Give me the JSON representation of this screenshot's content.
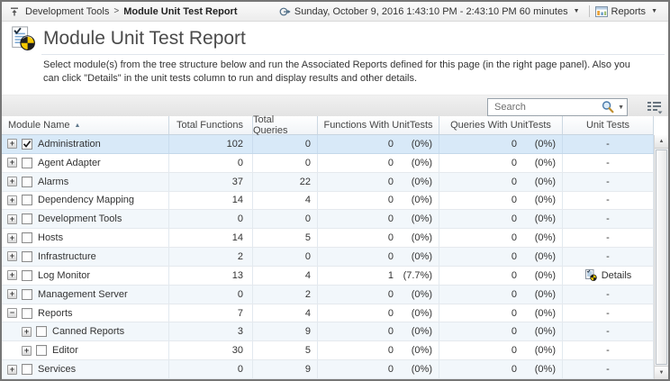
{
  "breadcrumb": {
    "root": "Development Tools",
    "separator": ">",
    "current": "Module Unit Test Report"
  },
  "topbar": {
    "time_range": "Sunday, October 9, 2016 1:43:10 PM - 2:43:10 PM 60 minutes",
    "reports_label": "Reports"
  },
  "page": {
    "title": "Module Unit Test Report",
    "description": "Select module(s) from the tree structure below and run the Associated Reports defined for this page (in the right page panel). Also you can click \"Details\" in the unit tests column to run and display results and other details."
  },
  "search": {
    "placeholder": "Search"
  },
  "icons": {
    "sort_asc": "▲",
    "dropdown": "▼",
    "scroll_up": "▲",
    "scroll_down": "▼",
    "expand": "+",
    "collapse": "−"
  },
  "colors": {
    "selected_row": "#d8e9f8",
    "stripe_row": "#f2f7fb",
    "pie_yellow": "#f7c900",
    "pie_black": "#1f1f1f"
  },
  "table": {
    "columns": [
      "Module Name",
      "Total Functions",
      "Total Queries",
      "Functions With UnitTests",
      "Queries With UnitTests",
      "Unit Tests"
    ],
    "sort": {
      "column": "Module Name",
      "direction": "asc"
    },
    "rows": [
      {
        "name": "Administration",
        "level": 0,
        "expanded": false,
        "checked": true,
        "selected": true,
        "total_functions": "102",
        "total_queries": "0",
        "func_unittests": "0",
        "func_unittests_pct": "(0%)",
        "query_unittests": "0",
        "query_unittests_pct": "(0%)",
        "unit_tests": "-",
        "has_details": false
      },
      {
        "name": "Agent Adapter",
        "level": 0,
        "expanded": false,
        "checked": false,
        "selected": false,
        "total_functions": "0",
        "total_queries": "0",
        "func_unittests": "0",
        "func_unittests_pct": "(0%)",
        "query_unittests": "0",
        "query_unittests_pct": "(0%)",
        "unit_tests": "-",
        "has_details": false
      },
      {
        "name": "Alarms",
        "level": 0,
        "expanded": false,
        "checked": false,
        "selected": false,
        "total_functions": "37",
        "total_queries": "22",
        "func_unittests": "0",
        "func_unittests_pct": "(0%)",
        "query_unittests": "0",
        "query_unittests_pct": "(0%)",
        "unit_tests": "-",
        "has_details": false
      },
      {
        "name": "Dependency Mapping",
        "level": 0,
        "expanded": false,
        "checked": false,
        "selected": false,
        "total_functions": "14",
        "total_queries": "4",
        "func_unittests": "0",
        "func_unittests_pct": "(0%)",
        "query_unittests": "0",
        "query_unittests_pct": "(0%)",
        "unit_tests": "-",
        "has_details": false
      },
      {
        "name": "Development Tools",
        "level": 0,
        "expanded": false,
        "checked": false,
        "selected": false,
        "total_functions": "0",
        "total_queries": "0",
        "func_unittests": "0",
        "func_unittests_pct": "(0%)",
        "query_unittests": "0",
        "query_unittests_pct": "(0%)",
        "unit_tests": "-",
        "has_details": false
      },
      {
        "name": "Hosts",
        "level": 0,
        "expanded": false,
        "checked": false,
        "selected": false,
        "total_functions": "14",
        "total_queries": "5",
        "func_unittests": "0",
        "func_unittests_pct": "(0%)",
        "query_unittests": "0",
        "query_unittests_pct": "(0%)",
        "unit_tests": "-",
        "has_details": false
      },
      {
        "name": "Infrastructure",
        "level": 0,
        "expanded": false,
        "checked": false,
        "selected": false,
        "total_functions": "2",
        "total_queries": "0",
        "func_unittests": "0",
        "func_unittests_pct": "(0%)",
        "query_unittests": "0",
        "query_unittests_pct": "(0%)",
        "unit_tests": "-",
        "has_details": false
      },
      {
        "name": "Log Monitor",
        "level": 0,
        "expanded": false,
        "checked": false,
        "selected": false,
        "total_functions": "13",
        "total_queries": "4",
        "func_unittests": "1",
        "func_unittests_pct": "(7.7%)",
        "query_unittests": "0",
        "query_unittests_pct": "(0%)",
        "unit_tests": "Details",
        "has_details": true
      },
      {
        "name": "Management Server",
        "level": 0,
        "expanded": false,
        "checked": false,
        "selected": false,
        "total_functions": "0",
        "total_queries": "2",
        "func_unittests": "0",
        "func_unittests_pct": "(0%)",
        "query_unittests": "0",
        "query_unittests_pct": "(0%)",
        "unit_tests": "-",
        "has_details": false
      },
      {
        "name": "Reports",
        "level": 0,
        "expanded": true,
        "checked": false,
        "selected": false,
        "total_functions": "7",
        "total_queries": "4",
        "func_unittests": "0",
        "func_unittests_pct": "(0%)",
        "query_unittests": "0",
        "query_unittests_pct": "(0%)",
        "unit_tests": "-",
        "has_details": false
      },
      {
        "name": "Canned Reports",
        "level": 1,
        "expanded": false,
        "checked": false,
        "selected": false,
        "total_functions": "3",
        "total_queries": "9",
        "func_unittests": "0",
        "func_unittests_pct": "(0%)",
        "query_unittests": "0",
        "query_unittests_pct": "(0%)",
        "unit_tests": "-",
        "has_details": false
      },
      {
        "name": "Editor",
        "level": 1,
        "expanded": false,
        "checked": false,
        "selected": false,
        "total_functions": "30",
        "total_queries": "5",
        "func_unittests": "0",
        "func_unittests_pct": "(0%)",
        "query_unittests": "0",
        "query_unittests_pct": "(0%)",
        "unit_tests": "-",
        "has_details": false
      },
      {
        "name": "Services",
        "level": 0,
        "expanded": false,
        "checked": false,
        "selected": false,
        "total_functions": "0",
        "total_queries": "9",
        "func_unittests": "0",
        "func_unittests_pct": "(0%)",
        "query_unittests": "0",
        "query_unittests_pct": "(0%)",
        "unit_tests": "-",
        "has_details": false
      }
    ]
  }
}
